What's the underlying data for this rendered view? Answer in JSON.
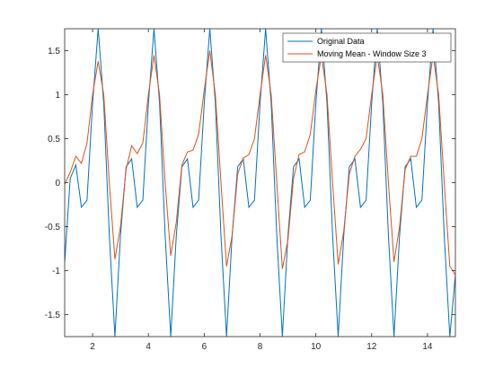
{
  "chart_data": {
    "type": "line",
    "title": "",
    "xlabel": "",
    "ylabel": "",
    "xlim": [
      1,
      15
    ],
    "ylim": [
      -1.75,
      1.75
    ],
    "x_ticks": [
      2,
      4,
      6,
      8,
      10,
      12,
      14
    ],
    "y_ticks": [
      -1.5,
      -1,
      -0.5,
      0,
      0.5,
      1,
      1.5
    ],
    "grid": false,
    "legend_location": "top-right",
    "series": [
      {
        "name": "Original Data",
        "color": "#0072BD",
        "x": [
          1.0,
          1.2,
          1.4,
          1.6,
          1.8,
          2.0,
          2.2,
          2.4,
          2.6,
          2.8,
          3.0,
          3.2,
          3.4,
          3.6,
          3.8,
          4.0,
          4.2,
          4.4,
          4.6,
          4.8,
          5.0,
          5.2,
          5.4,
          5.6,
          5.8,
          6.0,
          6.2,
          6.4,
          6.6,
          6.8,
          7.0,
          7.2,
          7.4,
          7.6,
          7.8,
          8.0,
          8.2,
          8.4,
          8.6,
          8.8,
          9.0,
          9.2,
          9.4,
          9.6,
          9.8,
          10.0,
          10.2,
          10.4,
          10.6,
          10.8,
          11.0,
          11.2,
          11.4,
          11.6,
          11.8,
          12.0,
          12.2,
          12.4,
          12.6,
          12.8,
          13.0,
          13.2,
          13.4,
          13.6,
          13.8,
          14.0,
          14.2,
          14.4,
          14.6,
          14.8,
          15.0
        ],
        "values": [
          -0.9,
          0.05,
          0.2,
          -0.28,
          -0.2,
          0.9,
          1.75,
          0.9,
          -0.6,
          -1.75,
          -0.6,
          0.18,
          0.27,
          -0.28,
          -0.2,
          0.9,
          1.75,
          0.9,
          -0.6,
          -1.75,
          -0.6,
          0.18,
          0.27,
          -0.28,
          -0.2,
          0.9,
          1.75,
          0.9,
          -0.6,
          -1.75,
          -0.6,
          0.18,
          0.27,
          -0.28,
          -0.2,
          0.9,
          1.75,
          0.9,
          -0.6,
          -1.75,
          -0.6,
          0.18,
          0.27,
          -0.28,
          -0.2,
          0.9,
          1.75,
          0.9,
          -0.6,
          -1.75,
          -0.6,
          0.18,
          0.27,
          -0.28,
          -0.2,
          0.9,
          1.75,
          0.9,
          -0.6,
          -1.75,
          -0.6,
          0.18,
          0.27,
          -0.28,
          -0.2,
          0.9,
          1.75,
          0.9,
          -0.6,
          -1.75,
          -1.05
        ]
      },
      {
        "name": "Moving Mean - Window Size 3",
        "color": "#D95319",
        "x": [
          1.0,
          1.2,
          1.4,
          1.6,
          1.8,
          2.0,
          2.2,
          2.4,
          2.6,
          2.8,
          3.0,
          3.2,
          3.4,
          3.6,
          3.8,
          4.0,
          4.2,
          4.4,
          4.6,
          4.8,
          5.0,
          5.2,
          5.4,
          5.6,
          5.8,
          6.0,
          6.2,
          6.4,
          6.6,
          6.8,
          7.0,
          7.2,
          7.4,
          7.6,
          7.8,
          8.0,
          8.2,
          8.4,
          8.6,
          8.8,
          9.0,
          9.2,
          9.4,
          9.6,
          9.8,
          10.0,
          10.2,
          10.4,
          10.6,
          10.8,
          11.0,
          11.2,
          11.4,
          11.6,
          11.8,
          12.0,
          12.2,
          12.4,
          12.6,
          12.8,
          13.0,
          13.2,
          13.4,
          13.6,
          13.8,
          14.0,
          14.2,
          14.4,
          14.6,
          14.8,
          15.0
        ],
        "values": [
          -0.02,
          0.12,
          0.3,
          0.22,
          0.45,
          1.0,
          1.38,
          1.0,
          0.0,
          -0.87,
          -0.5,
          0.15,
          0.42,
          0.33,
          0.45,
          1.0,
          1.45,
          1.0,
          0.0,
          -0.83,
          -0.45,
          0.2,
          0.35,
          0.37,
          0.55,
          1.05,
          1.5,
          1.0,
          0.0,
          -0.95,
          -0.6,
          0.1,
          0.28,
          0.32,
          0.5,
          1.0,
          1.45,
          1.0,
          0.0,
          -0.98,
          -0.65,
          0.05,
          0.32,
          0.35,
          0.55,
          1.05,
          1.45,
          1.0,
          0.0,
          -0.93,
          -0.55,
          0.1,
          0.3,
          0.38,
          0.5,
          1.0,
          1.45,
          1.0,
          0.0,
          -0.9,
          -0.5,
          0.15,
          0.3,
          0.3,
          0.5,
          1.0,
          1.45,
          1.0,
          0.0,
          -0.95,
          -1.05
        ]
      }
    ]
  }
}
